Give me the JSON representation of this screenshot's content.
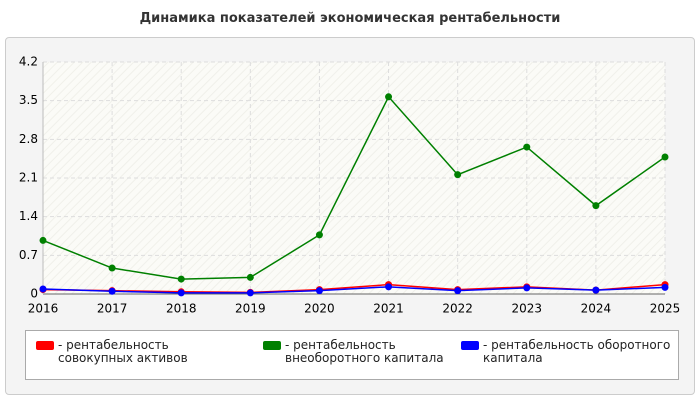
{
  "chart_data": {
    "type": "line",
    "title": "Динамика показателей экономическая рентабельности",
    "categories": [
      "2016",
      "2017",
      "2018",
      "2019",
      "2020",
      "2021",
      "2022",
      "2023",
      "2024",
      "2025"
    ],
    "series": [
      {
        "name": "- рентабельность совокупных активов",
        "color": "#ff0000",
        "values": [
          0.08,
          0.06,
          0.04,
          0.03,
          0.08,
          0.17,
          0.08,
          0.13,
          0.07,
          0.17
        ]
      },
      {
        "name": "- рентабельность внеоборотного капитала",
        "color": "#008000",
        "values": [
          0.97,
          0.47,
          0.27,
          0.3,
          1.07,
          3.57,
          2.16,
          2.66,
          1.6,
          2.48
        ]
      },
      {
        "name": "- рентабельность оборотного капитала",
        "color": "#0000ff",
        "values": [
          0.09,
          0.05,
          0.02,
          0.02,
          0.06,
          0.13,
          0.06,
          0.11,
          0.07,
          0.12
        ]
      }
    ],
    "ylim": [
      0,
      4.2
    ],
    "yticks": [
      0,
      0.7,
      1.4,
      2.1,
      2.8,
      3.5,
      4.2
    ],
    "grid": true
  }
}
